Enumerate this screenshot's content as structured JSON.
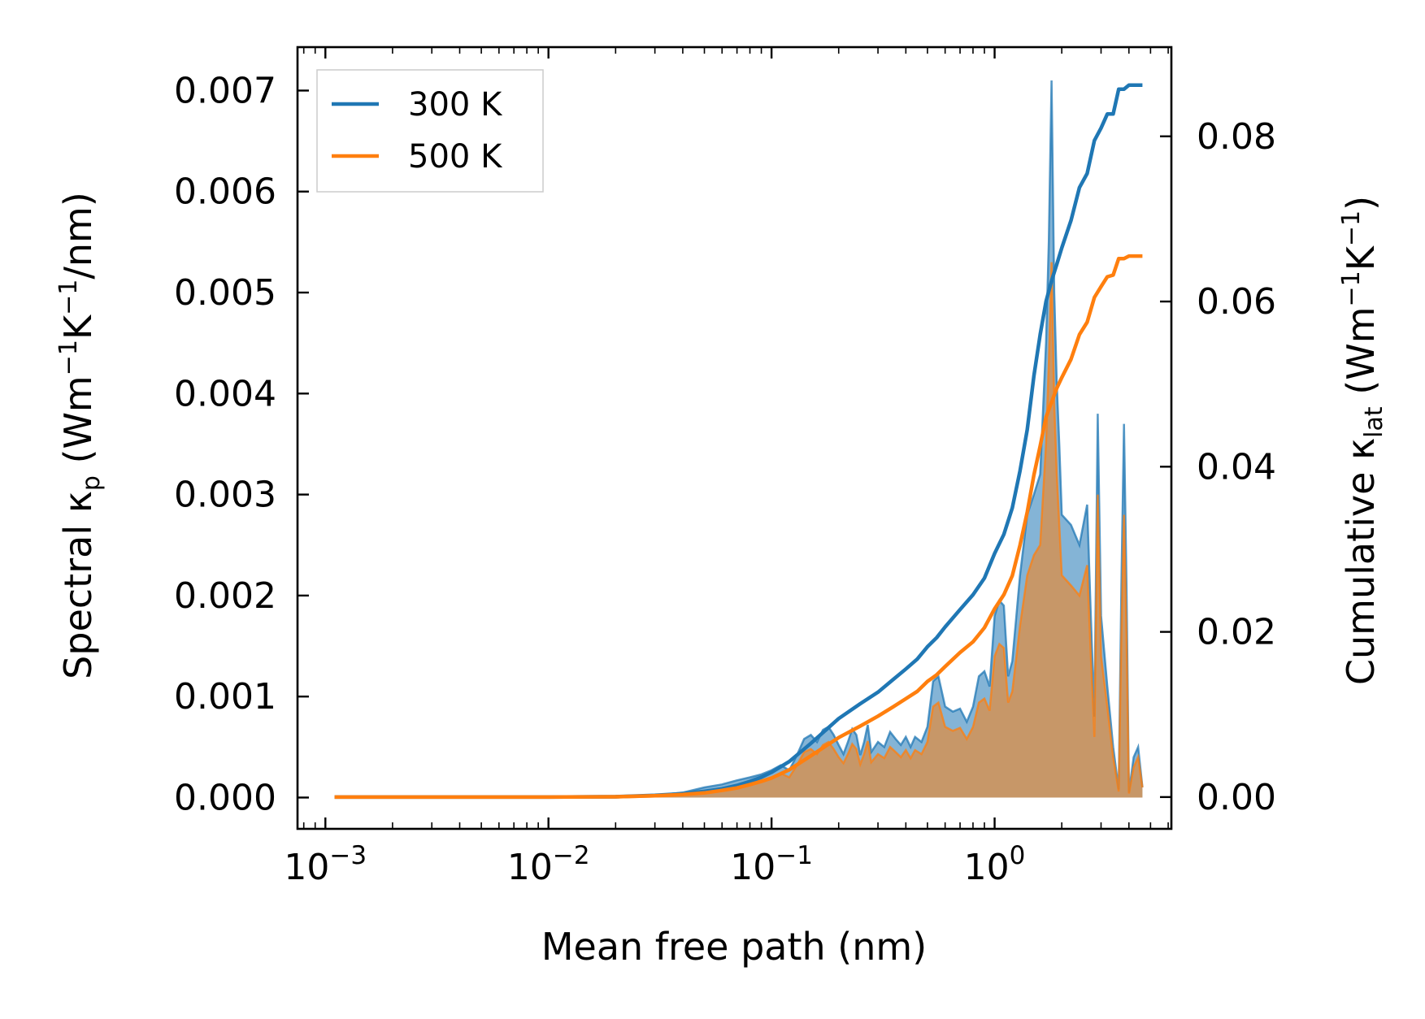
{
  "chart_data": {
    "type": "line",
    "x_scale": "log",
    "xlabel": "Mean free path (nm)",
    "ylabel_left": {
      "main": "Spectral κ",
      "sub": "p",
      "units_open": " (Wm",
      "exp1": "−1",
      "mid": "K",
      "exp2": "−1",
      "close": "/nm)"
    },
    "ylabel_right": {
      "main": "Cumulative κ",
      "sub": "lat",
      "units_open": " (Wm",
      "exp1": "−1",
      "mid": "K",
      "exp2": "−1",
      "close": ")"
    },
    "xlim": [
      0.00075,
      6.2
    ],
    "ylim_left": [
      -0.00031,
      0.00743
    ],
    "ylim_right": [
      -0.00385,
      0.0908
    ],
    "x_ticks": [
      {
        "value": 0.001,
        "base": "10",
        "exp": "−3"
      },
      {
        "value": 0.01,
        "base": "10",
        "exp": "−2"
      },
      {
        "value": 0.1,
        "base": "10",
        "exp": "−1"
      },
      {
        "value": 1,
        "base": "10",
        "exp": "0"
      }
    ],
    "y_ticks_left": [
      {
        "value": 0.0,
        "label": "0.000"
      },
      {
        "value": 0.001,
        "label": "0.001"
      },
      {
        "value": 0.002,
        "label": "0.002"
      },
      {
        "value": 0.003,
        "label": "0.003"
      },
      {
        "value": 0.004,
        "label": "0.004"
      },
      {
        "value": 0.005,
        "label": "0.005"
      },
      {
        "value": 0.006,
        "label": "0.006"
      },
      {
        "value": 0.007,
        "label": "0.007"
      }
    ],
    "y_ticks_right": [
      {
        "value": 0.0,
        "label": "0.00"
      },
      {
        "value": 0.02,
        "label": "0.02"
      },
      {
        "value": 0.04,
        "label": "0.04"
      },
      {
        "value": 0.06,
        "label": "0.06"
      },
      {
        "value": 0.08,
        "label": "0.08"
      }
    ],
    "legend": {
      "position": "top-left",
      "entries": [
        {
          "label": "300 K",
          "color": "#1f77b4"
        },
        {
          "label": "500 K",
          "color": "#ff7f0e"
        }
      ]
    },
    "spectral_series": [
      {
        "name": "300 K",
        "color": "#1f77b4",
        "fill_opacity": 0.55,
        "x": [
          0.0011,
          0.005,
          0.02,
          0.03,
          0.04,
          0.05,
          0.06,
          0.07,
          0.08,
          0.09,
          0.1,
          0.11,
          0.12,
          0.13,
          0.14,
          0.15,
          0.16,
          0.17,
          0.18,
          0.19,
          0.2,
          0.21,
          0.22,
          0.23,
          0.24,
          0.25,
          0.26,
          0.27,
          0.28,
          0.3,
          0.32,
          0.34,
          0.36,
          0.38,
          0.4,
          0.42,
          0.44,
          0.47,
          0.5,
          0.53,
          0.56,
          0.6,
          0.65,
          0.7,
          0.75,
          0.8,
          0.85,
          0.9,
          0.95,
          1.0,
          1.05,
          1.1,
          1.15,
          1.2,
          1.3,
          1.4,
          1.5,
          1.6,
          1.7,
          1.75,
          1.8,
          1.85,
          1.9,
          1.95,
          2.0,
          2.2,
          2.4,
          2.6,
          2.7,
          2.8,
          2.9,
          3.0,
          3.2,
          3.4,
          3.6,
          3.7,
          3.8,
          3.9,
          4.0,
          4.2,
          4.4,
          4.6
        ],
        "y": [
          0.0,
          0.0,
          0.0,
          2e-05,
          5e-05,
          0.0001,
          0.00013,
          0.00017,
          0.0002,
          0.00023,
          0.00027,
          0.00032,
          0.00027,
          0.00042,
          0.00058,
          0.00062,
          0.00055,
          0.00067,
          0.0007,
          0.00062,
          0.00052,
          0.00043,
          0.00055,
          0.00068,
          0.00062,
          0.00042,
          0.00055,
          0.00072,
          0.00045,
          0.00055,
          0.0005,
          0.00065,
          0.00058,
          0.00052,
          0.0006,
          0.0005,
          0.0006,
          0.00055,
          0.0007,
          0.00115,
          0.0012,
          0.0009,
          0.00085,
          0.00088,
          0.00075,
          0.0009,
          0.0012,
          0.00125,
          0.0011,
          0.0018,
          0.00195,
          0.0019,
          0.0012,
          0.00135,
          0.0022,
          0.0028,
          0.003,
          0.0032,
          0.0045,
          0.0055,
          0.0071,
          0.005,
          0.0041,
          0.0035,
          0.0028,
          0.0027,
          0.0025,
          0.0029,
          0.0018,
          0.0008,
          0.0038,
          0.0018,
          0.0011,
          0.0005,
          8e-05,
          0.0021,
          0.0037,
          0.0021,
          5e-05,
          0.0004,
          0.0005,
          0.0001
        ]
      },
      {
        "name": "500 K",
        "color": "#ff7f0e",
        "fill_opacity": 0.55,
        "x": [
          0.0011,
          0.005,
          0.02,
          0.03,
          0.04,
          0.05,
          0.06,
          0.07,
          0.08,
          0.09,
          0.1,
          0.11,
          0.12,
          0.13,
          0.14,
          0.15,
          0.16,
          0.17,
          0.18,
          0.19,
          0.2,
          0.21,
          0.22,
          0.23,
          0.24,
          0.25,
          0.26,
          0.27,
          0.28,
          0.3,
          0.32,
          0.34,
          0.36,
          0.38,
          0.4,
          0.42,
          0.44,
          0.47,
          0.5,
          0.53,
          0.56,
          0.6,
          0.65,
          0.7,
          0.75,
          0.8,
          0.85,
          0.9,
          0.95,
          1.0,
          1.05,
          1.1,
          1.15,
          1.2,
          1.3,
          1.4,
          1.5,
          1.6,
          1.7,
          1.75,
          1.8,
          1.85,
          1.9,
          1.95,
          2.0,
          2.2,
          2.4,
          2.6,
          2.7,
          2.8,
          2.9,
          3.0,
          3.2,
          3.4,
          3.6,
          3.7,
          3.8,
          3.9,
          4.0,
          4.2,
          4.4,
          4.6
        ],
        "y": [
          0.0,
          0.0,
          0.0,
          1e-05,
          3e-05,
          6e-05,
          9e-05,
          0.00012,
          0.00015,
          0.00017,
          0.0002,
          0.00024,
          0.0002,
          0.00032,
          0.00045,
          0.00048,
          0.00043,
          0.00052,
          0.00055,
          0.00048,
          0.0004,
          0.00034,
          0.00043,
          0.00053,
          0.00048,
          0.00033,
          0.00043,
          0.00056,
          0.00035,
          0.00043,
          0.00039,
          0.0005,
          0.00045,
          0.0004,
          0.00047,
          0.00039,
          0.00047,
          0.00043,
          0.00055,
          0.0009,
          0.00094,
          0.0007,
          0.00066,
          0.00069,
          0.00058,
          0.0007,
          0.00094,
          0.00098,
          0.00086,
          0.0014,
          0.00152,
          0.00148,
          0.00094,
          0.00105,
          0.0017,
          0.0022,
          0.0024,
          0.0025,
          0.0035,
          0.0043,
          0.0053,
          0.0039,
          0.0032,
          0.0027,
          0.0022,
          0.0021,
          0.002,
          0.0023,
          0.0014,
          0.0006,
          0.003,
          0.0014,
          0.0009,
          0.0004,
          6e-05,
          0.0016,
          0.0028,
          0.0016,
          4e-05,
          0.0003,
          0.0004,
          0.0001
        ]
      }
    ],
    "cumulative_series": [
      {
        "name": "300 K",
        "color": "#1f77b4",
        "axis": "right",
        "x": [
          0.0011,
          0.01,
          0.02,
          0.03,
          0.04,
          0.05,
          0.06,
          0.07,
          0.08,
          0.09,
          0.1,
          0.12,
          0.15,
          0.2,
          0.25,
          0.3,
          0.35,
          0.4,
          0.45,
          0.5,
          0.55,
          0.6,
          0.7,
          0.8,
          0.9,
          1.0,
          1.1,
          1.2,
          1.3,
          1.4,
          1.5,
          1.6,
          1.7,
          1.8,
          1.9,
          2.0,
          2.2,
          2.4,
          2.6,
          2.8,
          3.0,
          3.2,
          3.4,
          3.6,
          3.8,
          4.0,
          4.2,
          4.4,
          4.6
        ],
        "y": [
          0.0,
          0.0,
          5e-05,
          0.0002,
          0.0004,
          0.0007,
          0.001,
          0.0014,
          0.0019,
          0.0024,
          0.003,
          0.0043,
          0.0065,
          0.0095,
          0.0113,
          0.0127,
          0.0142,
          0.0155,
          0.0167,
          0.0182,
          0.0193,
          0.0206,
          0.0227,
          0.0245,
          0.0265,
          0.0295,
          0.0318,
          0.035,
          0.0395,
          0.0445,
          0.051,
          0.056,
          0.06,
          0.0625,
          0.0645,
          0.0665,
          0.0698,
          0.0738,
          0.0755,
          0.0795,
          0.081,
          0.0827,
          0.0827,
          0.0857,
          0.0857,
          0.0862,
          0.0862,
          0.0862,
          0.0862
        ]
      },
      {
        "name": "500 K",
        "color": "#ff7f0e",
        "axis": "right",
        "x": [
          0.0011,
          0.01,
          0.02,
          0.03,
          0.04,
          0.05,
          0.06,
          0.07,
          0.08,
          0.09,
          0.1,
          0.12,
          0.15,
          0.2,
          0.25,
          0.3,
          0.35,
          0.4,
          0.45,
          0.5,
          0.55,
          0.6,
          0.7,
          0.8,
          0.9,
          1.0,
          1.1,
          1.2,
          1.3,
          1.4,
          1.5,
          1.6,
          1.7,
          1.8,
          1.9,
          2.0,
          2.2,
          2.4,
          2.6,
          2.8,
          3.0,
          3.2,
          3.4,
          3.6,
          3.8,
          4.0,
          4.2,
          4.4,
          4.6
        ],
        "y": [
          0.0,
          0.0,
          4e-05,
          0.00015,
          0.0003,
          0.0005,
          0.0008,
          0.0011,
          0.0015,
          0.0019,
          0.0023,
          0.0033,
          0.005,
          0.0072,
          0.0086,
          0.0098,
          0.0109,
          0.0119,
          0.0128,
          0.014,
          0.0148,
          0.0158,
          0.0175,
          0.0188,
          0.0205,
          0.0228,
          0.0245,
          0.0268,
          0.0305,
          0.0345,
          0.039,
          0.0425,
          0.046,
          0.0478,
          0.0495,
          0.0508,
          0.053,
          0.056,
          0.0575,
          0.0605,
          0.0618,
          0.063,
          0.0632,
          0.0652,
          0.0652,
          0.0655,
          0.0655,
          0.0655,
          0.0655
        ]
      }
    ]
  }
}
